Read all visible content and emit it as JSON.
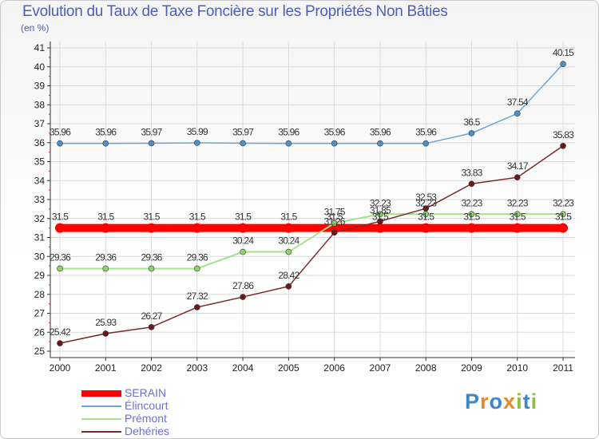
{
  "chart_data": {
    "type": "line",
    "title": "Evolution du Taux de Taxe Foncière sur les Propriétés Non Bâties",
    "subtitle": "(en %)",
    "xlabel": "",
    "ylabel": "",
    "categories": [
      "2000",
      "2001",
      "2002",
      "2003",
      "2004",
      "2005",
      "2006",
      "2007",
      "2008",
      "2009",
      "2010",
      "2011"
    ],
    "ylim": [
      25,
      41
    ],
    "yticks": [
      "25",
      "26",
      "27",
      "28",
      "29",
      "30",
      "31",
      "32",
      "33",
      "34",
      "35",
      "36",
      "37",
      "38",
      "39",
      "40",
      "41"
    ],
    "grid": true,
    "legend_position": "bottom-left",
    "series": [
      {
        "name": "SERAIN",
        "color": "#ff0000",
        "values": [
          31.5,
          31.5,
          31.5,
          31.5,
          31.5,
          31.5,
          31.5,
          31.5,
          31.5,
          31.5,
          31.5,
          31.5
        ],
        "labels": [
          "31.5",
          "31.5",
          "31.5",
          "31.5",
          "31.5",
          "31.5",
          "31.5",
          "31.5",
          "31.5",
          "31.5",
          "31.5",
          "31.5"
        ]
      },
      {
        "name": "Élincourt",
        "color": "#6ea6d8",
        "values": [
          35.96,
          35.96,
          35.97,
          35.99,
          35.97,
          35.96,
          35.96,
          35.96,
          35.96,
          36.5,
          37.54,
          40.15
        ],
        "labels": [
          "35.96",
          "35.96",
          "35.97",
          "35.99",
          "35.97",
          "35.96",
          "35.96",
          "35.96",
          "35.96",
          "36.5",
          "37.54",
          "40.15"
        ]
      },
      {
        "name": "Prémont",
        "color": "#a5e08a",
        "values": [
          29.36,
          29.36,
          29.36,
          29.36,
          30.24,
          30.24,
          31.75,
          32.23,
          32.23,
          32.23,
          32.23,
          32.23
        ],
        "labels": [
          "29.36",
          "29.36",
          "29.36",
          "29.36",
          "30.24",
          "30.24",
          "31.75",
          "32.23",
          "32.23",
          "32.23",
          "32.23",
          "32.23"
        ]
      },
      {
        "name": "Dehéries",
        "color": "#7a2a2a",
        "values": [
          25.42,
          25.93,
          26.27,
          27.32,
          27.86,
          28.42,
          31.26,
          31.85,
          32.53,
          33.83,
          34.17,
          35.83
        ],
        "labels": [
          "25.42",
          "25.93",
          "26.27",
          "27.32",
          "27.86",
          "28.42",
          "31.26",
          "31.85",
          "32.53",
          "33.83",
          "34.17",
          "35.83"
        ]
      }
    ]
  },
  "logo": {
    "text": "Proxiti",
    "letters": [
      "P",
      "r",
      "o",
      "x",
      "i",
      "t",
      "i"
    ],
    "colors": [
      "#3f86c8",
      "#e58a2a",
      "#3f86c8",
      "#e58a2a",
      "#8cbf3f",
      "#3f86c8",
      "#8cbf3f"
    ]
  }
}
